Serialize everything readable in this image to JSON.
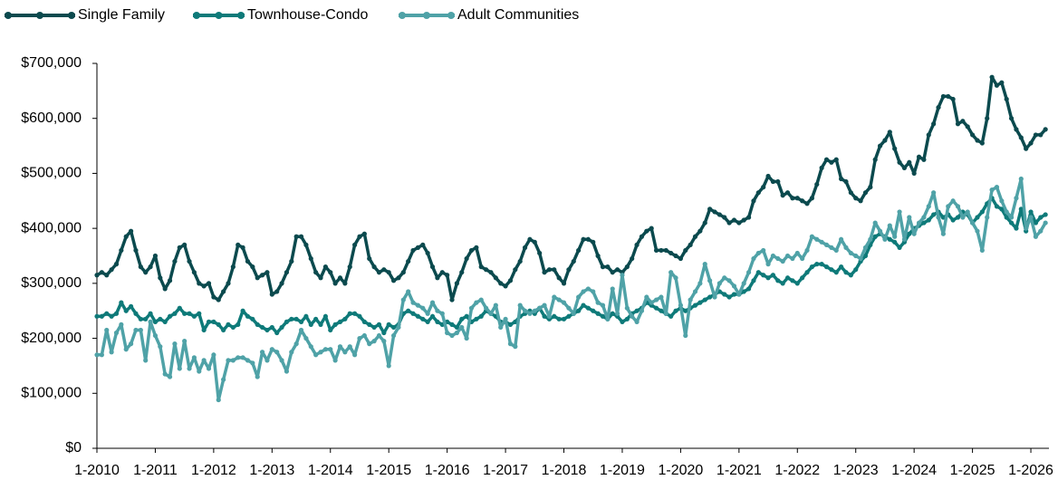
{
  "chart_data": {
    "type": "line",
    "categories": [
      "1-2010",
      null,
      null,
      null,
      null,
      null,
      null,
      null,
      null,
      null,
      null,
      null,
      "1-2011",
      null,
      null,
      null,
      null,
      null,
      null,
      null,
      null,
      null,
      null,
      null,
      "1-2012",
      null,
      null,
      null,
      null,
      null,
      null,
      null,
      null,
      null,
      null,
      null,
      "1-2013",
      null,
      null,
      null,
      null,
      null,
      null,
      null,
      null,
      null,
      null,
      null,
      "1-2014",
      null,
      null,
      null,
      null,
      null,
      null,
      null,
      null,
      null,
      null,
      null,
      "1-2015",
      null,
      null,
      null,
      null,
      null,
      null,
      null,
      null,
      null,
      null,
      null,
      "1-2016",
      null,
      null,
      null,
      null,
      null,
      null,
      null,
      null,
      null,
      null,
      null,
      "1-2017",
      null,
      null,
      null,
      null,
      null,
      null,
      null,
      null,
      null,
      null,
      null,
      "1-2018",
      null,
      null,
      null,
      null,
      null,
      null,
      null,
      null,
      null,
      null,
      null,
      "1-2019",
      null,
      null,
      null,
      null,
      null,
      null,
      null,
      null,
      null,
      null,
      null,
      "1-2020",
      null,
      null,
      null,
      null,
      null,
      null,
      null,
      null,
      null,
      null,
      null,
      "1-2021",
      null,
      null,
      null,
      null,
      null,
      null,
      null,
      null,
      null,
      null,
      null,
      "1-2022",
      null,
      null,
      null,
      null,
      null,
      null,
      null,
      null,
      null,
      null,
      null,
      "1-2023",
      null,
      null,
      null,
      null,
      null,
      null,
      null,
      null,
      null,
      null,
      null,
      "1-2024",
      null,
      null,
      null,
      null,
      null,
      null,
      null,
      null,
      null,
      null,
      null,
      "1-2025",
      null,
      null,
      null,
      null,
      null,
      null,
      null,
      null,
      null,
      null,
      null,
      "1-2026",
      null,
      null,
      null
    ],
    "series": [
      {
        "name": "Single Family",
        "color": "#0b4a4e",
        "values": [
          315000,
          320000,
          315000,
          325000,
          335000,
          360000,
          385000,
          395000,
          360000,
          330000,
          320000,
          330000,
          350000,
          310000,
          290000,
          305000,
          340000,
          365000,
          370000,
          340000,
          320000,
          300000,
          295000,
          300000,
          275000,
          270000,
          285000,
          300000,
          330000,
          370000,
          365000,
          340000,
          330000,
          310000,
          315000,
          320000,
          280000,
          285000,
          300000,
          320000,
          340000,
          385000,
          385000,
          370000,
          345000,
          320000,
          310000,
          330000,
          320000,
          300000,
          310000,
          300000,
          330000,
          370000,
          385000,
          390000,
          345000,
          330000,
          320000,
          325000,
          320000,
          305000,
          310000,
          320000,
          340000,
          360000,
          365000,
          370000,
          355000,
          330000,
          310000,
          320000,
          315000,
          270000,
          300000,
          320000,
          345000,
          360000,
          365000,
          330000,
          325000,
          320000,
          310000,
          300000,
          295000,
          305000,
          325000,
          340000,
          365000,
          380000,
          375000,
          355000,
          320000,
          325000,
          325000,
          310000,
          300000,
          325000,
          340000,
          360000,
          380000,
          380000,
          375000,
          350000,
          330000,
          330000,
          320000,
          325000,
          320000,
          330000,
          345000,
          370000,
          385000,
          395000,
          400000,
          360000,
          360000,
          360000,
          355000,
          350000,
          345000,
          360000,
          370000,
          385000,
          395000,
          410000,
          435000,
          430000,
          425000,
          420000,
          410000,
          415000,
          410000,
          415000,
          420000,
          450000,
          465000,
          475000,
          495000,
          485000,
          485000,
          460000,
          465000,
          455000,
          455000,
          450000,
          445000,
          455000,
          480000,
          510000,
          525000,
          520000,
          525000,
          490000,
          485000,
          465000,
          455000,
          450000,
          465000,
          475000,
          525000,
          550000,
          560000,
          575000,
          545000,
          520000,
          510000,
          520000,
          500000,
          530000,
          525000,
          570000,
          590000,
          620000,
          640000,
          640000,
          635000,
          590000,
          595000,
          585000,
          570000,
          560000,
          555000,
          600000,
          675000,
          660000,
          665000,
          635000,
          600000,
          580000,
          565000,
          545000,
          555000,
          570000,
          570000,
          580000
        ]
      },
      {
        "name": "Townhouse-Condo",
        "color": "#0e7a79",
        "values": [
          240000,
          240000,
          245000,
          240000,
          245000,
          265000,
          250000,
          258000,
          245000,
          235000,
          235000,
          245000,
          230000,
          235000,
          230000,
          240000,
          245000,
          255000,
          245000,
          245000,
          240000,
          245000,
          215000,
          230000,
          230000,
          225000,
          215000,
          225000,
          220000,
          225000,
          250000,
          240000,
          235000,
          225000,
          220000,
          215000,
          220000,
          210000,
          220000,
          230000,
          235000,
          235000,
          230000,
          240000,
          225000,
          235000,
          225000,
          240000,
          215000,
          225000,
          230000,
          235000,
          245000,
          245000,
          240000,
          230000,
          225000,
          220000,
          225000,
          210000,
          225000,
          220000,
          225000,
          245000,
          250000,
          245000,
          240000,
          235000,
          230000,
          240000,
          230000,
          225000,
          230000,
          225000,
          220000,
          235000,
          240000,
          230000,
          235000,
          240000,
          250000,
          245000,
          240000,
          230000,
          230000,
          225000,
          230000,
          240000,
          245000,
          250000,
          245000,
          255000,
          240000,
          235000,
          240000,
          235000,
          235000,
          240000,
          245000,
          250000,
          260000,
          255000,
          250000,
          245000,
          240000,
          235000,
          245000,
          240000,
          230000,
          235000,
          245000,
          250000,
          255000,
          265000,
          260000,
          255000,
          250000,
          245000,
          240000,
          250000,
          255000,
          250000,
          255000,
          260000,
          265000,
          270000,
          275000,
          280000,
          285000,
          280000,
          275000,
          280000,
          280000,
          285000,
          290000,
          305000,
          320000,
          315000,
          310000,
          315000,
          305000,
          300000,
          310000,
          305000,
          300000,
          310000,
          320000,
          330000,
          335000,
          335000,
          330000,
          325000,
          320000,
          330000,
          320000,
          315000,
          325000,
          340000,
          350000,
          370000,
          385000,
          390000,
          385000,
          380000,
          375000,
          365000,
          375000,
          390000,
          400000,
          405000,
          410000,
          415000,
          425000,
          430000,
          420000,
          425000,
          415000,
          420000,
          430000,
          425000,
          410000,
          420000,
          430000,
          445000,
          455000,
          440000,
          435000,
          420000,
          410000,
          400000,
          435000,
          395000,
          430000,
          410000,
          420000,
          425000
        ]
      },
      {
        "name": "Adult Communities",
        "color": "#4fa2a7",
        "values": [
          170000,
          170000,
          215000,
          175000,
          210000,
          225000,
          180000,
          190000,
          215000,
          215000,
          160000,
          230000,
          205000,
          185000,
          135000,
          130000,
          190000,
          145000,
          195000,
          145000,
          165000,
          140000,
          160000,
          145000,
          170000,
          88000,
          125000,
          160000,
          160000,
          165000,
          165000,
          160000,
          155000,
          130000,
          175000,
          160000,
          180000,
          175000,
          160000,
          140000,
          175000,
          190000,
          215000,
          200000,
          185000,
          170000,
          175000,
          180000,
          180000,
          160000,
          185000,
          175000,
          185000,
          170000,
          200000,
          205000,
          190000,
          195000,
          205000,
          195000,
          150000,
          205000,
          220000,
          270000,
          285000,
          265000,
          260000,
          255000,
          245000,
          265000,
          250000,
          245000,
          210000,
          205000,
          210000,
          220000,
          200000,
          255000,
          265000,
          270000,
          255000,
          245000,
          260000,
          220000,
          235000,
          190000,
          185000,
          260000,
          250000,
          245000,
          250000,
          255000,
          260000,
          240000,
          275000,
          270000,
          265000,
          255000,
          245000,
          275000,
          285000,
          290000,
          285000,
          265000,
          260000,
          235000,
          290000,
          245000,
          315000,
          255000,
          240000,
          230000,
          250000,
          275000,
          265000,
          270000,
          275000,
          245000,
          320000,
          310000,
          260000,
          205000,
          270000,
          285000,
          300000,
          335000,
          305000,
          275000,
          300000,
          310000,
          305000,
          295000,
          280000,
          300000,
          320000,
          345000,
          355000,
          360000,
          335000,
          350000,
          345000,
          340000,
          350000,
          345000,
          355000,
          345000,
          360000,
          385000,
          380000,
          375000,
          370000,
          365000,
          360000,
          380000,
          365000,
          355000,
          350000,
          345000,
          365000,
          380000,
          410000,
          395000,
          380000,
          405000,
          385000,
          430000,
          380000,
          420000,
          390000,
          410000,
          420000,
          440000,
          465000,
          420000,
          390000,
          440000,
          450000,
          440000,
          420000,
          430000,
          410000,
          395000,
          360000,
          420000,
          470000,
          475000,
          450000,
          430000,
          420000,
          455000,
          490000,
          400000,
          420000,
          385000,
          395000,
          410000
        ]
      }
    ],
    "ylim": [
      0,
      700000
    ],
    "yticks": [
      {
        "value": 0,
        "label": "$0"
      },
      {
        "value": 100000,
        "label": "$100,000"
      },
      {
        "value": 200000,
        "label": "$200,000"
      },
      {
        "value": 300000,
        "label": "$300,000"
      },
      {
        "value": 400000,
        "label": "$400,000"
      },
      {
        "value": 500000,
        "label": "$500,000"
      },
      {
        "value": 600000,
        "label": "$600,000"
      },
      {
        "value": 700000,
        "label": "$700,000"
      }
    ],
    "grid": false,
    "legend": "top-left"
  }
}
